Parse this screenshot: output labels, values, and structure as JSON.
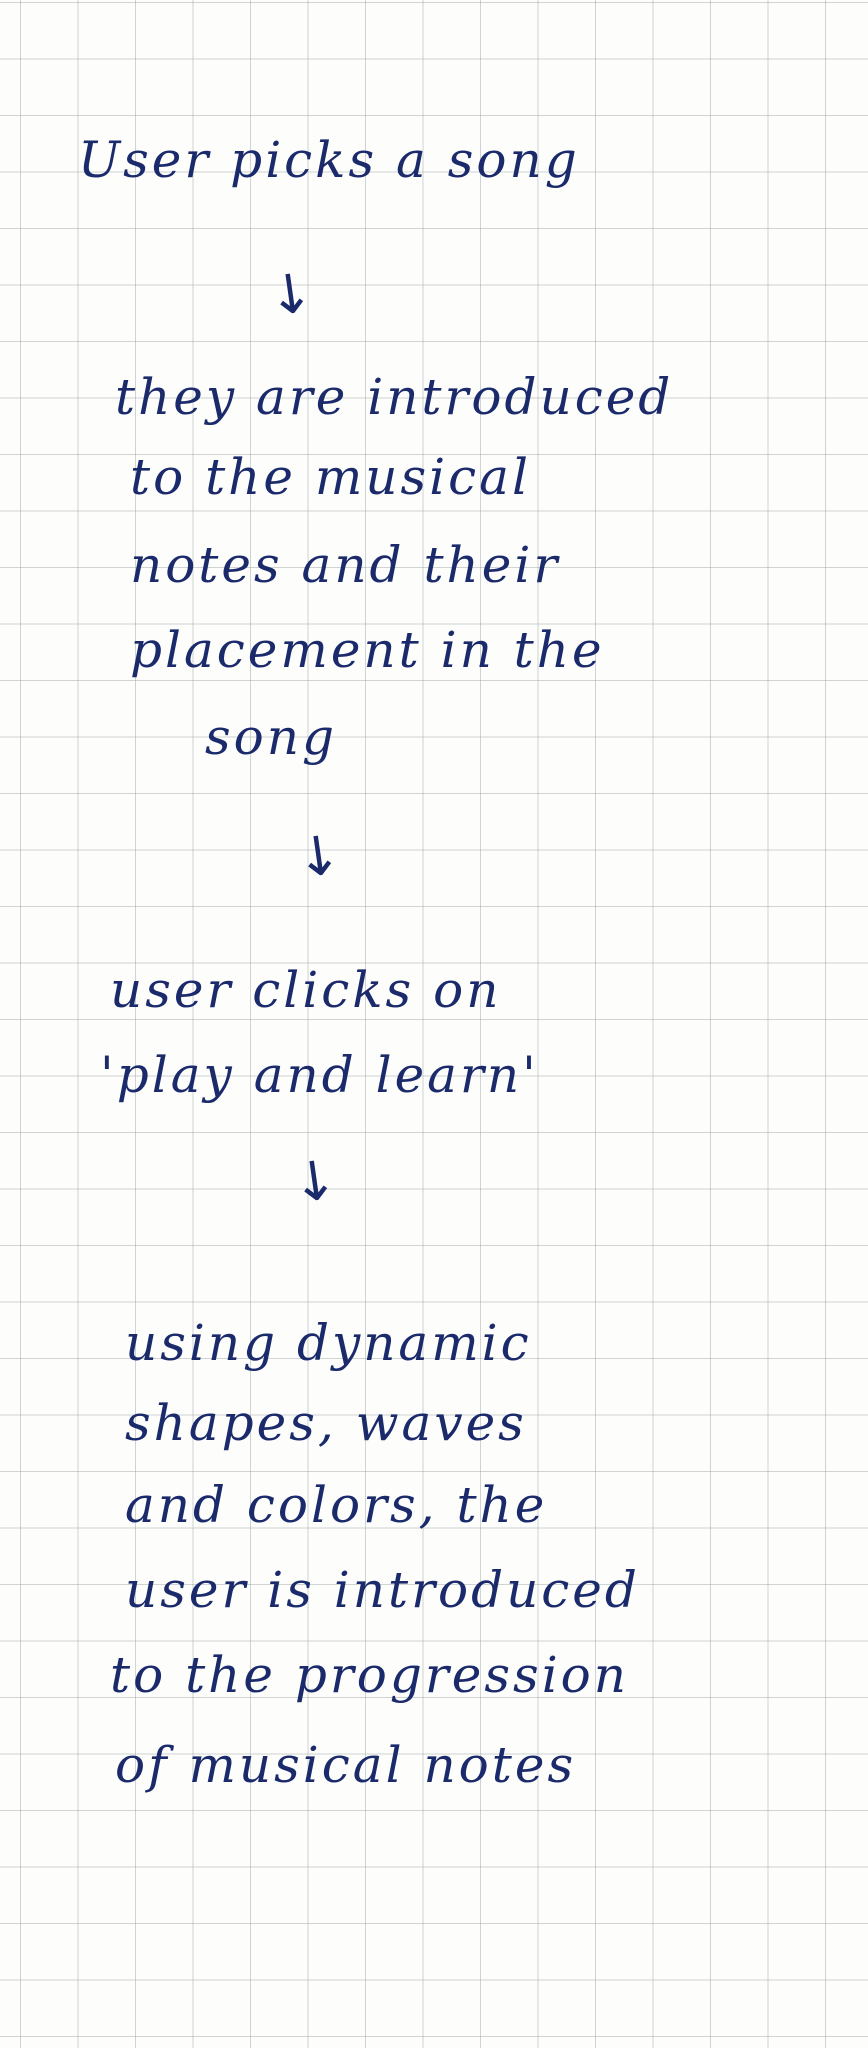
{
  "colors": {
    "ink": "#1b2a6b",
    "grid": "#9aa4aa",
    "paper": "#fdfdfc"
  },
  "flow": {
    "steps": [
      {
        "lines": [
          "User picks a song"
        ]
      },
      {
        "lines": [
          "they are introduced",
          "to the musical",
          "notes and their",
          "placement in the",
          "song"
        ]
      },
      {
        "lines": [
          "user clicks on",
          "'play and learn'"
        ]
      },
      {
        "lines": [
          "using dynamic",
          "shapes, waves",
          "and colors, the",
          "user is introduced",
          "to the progression",
          "of musical notes"
        ]
      }
    ],
    "arrow_glyph": "↓",
    "arrow_icon": "arrow-down-icon"
  }
}
